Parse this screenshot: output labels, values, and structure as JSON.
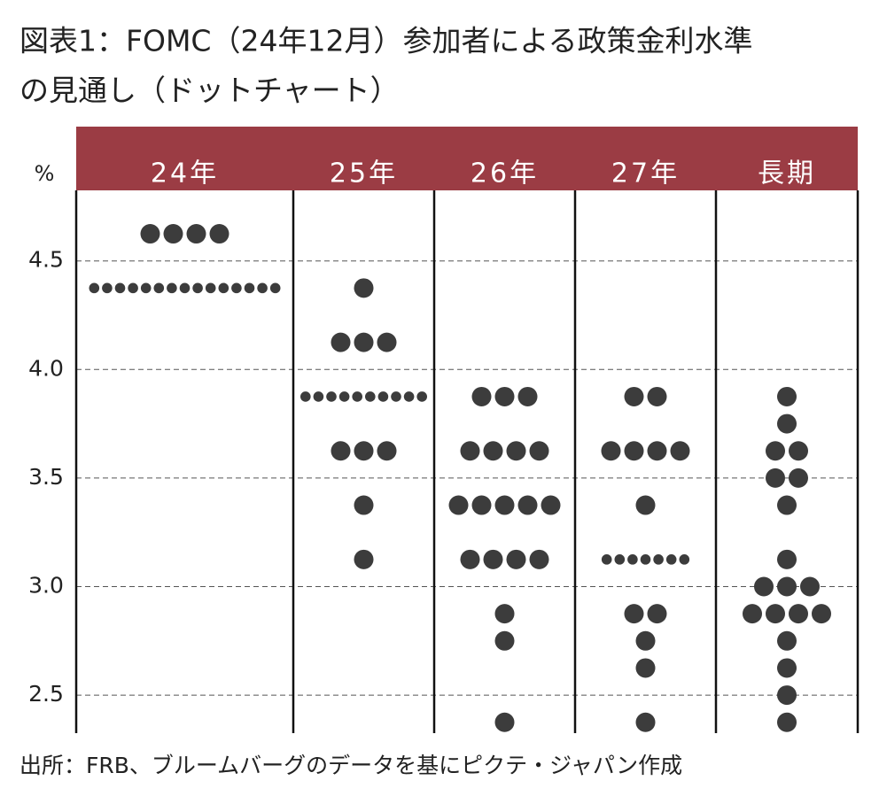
{
  "chart_data": {
    "type": "dot",
    "title_lines": [
      "図表1：FOMC（24年12月）参加者による政策金利水準",
      "の見通し（ドットチャート）"
    ],
    "y_unit": "%",
    "source": "出所：FRB、ブルームバーグのデータを基にピクテ・ジャパン作成",
    "categories": [
      "24年",
      "25年",
      "26年",
      "27年",
      "長期"
    ],
    "color": "#3c3c3c",
    "header_color": "#9b3c44",
    "ylim": [
      2.325,
      4.825
    ],
    "yticks": [
      2.5,
      {
        "value": 3,
        "label": "3.0"
      },
      3.5,
      {
        "value": 4,
        "label": "4.0"
      },
      4.5
    ],
    "grid": true,
    "dots": [
      [
        {
          "y": 4.625,
          "count": 4
        },
        {
          "y": 4.375,
          "count": 15
        }
      ],
      [
        {
          "y": 4.375,
          "count": 1
        },
        {
          "y": 4.125,
          "count": 3
        },
        {
          "y": 3.875,
          "count": 10
        },
        {
          "y": 3.625,
          "count": 3
        },
        {
          "y": 3.375,
          "count": 1
        },
        {
          "y": 3.125,
          "count": 1
        }
      ],
      [
        {
          "y": 3.875,
          "count": 3
        },
        {
          "y": 3.625,
          "count": 4
        },
        {
          "y": 3.375,
          "count": 5
        },
        {
          "y": 3.125,
          "count": 4
        },
        {
          "y": 2.875,
          "count": 1
        },
        {
          "y": 2.75,
          "count": 1
        },
        {
          "y": 2.375,
          "count": 1
        }
      ],
      [
        {
          "y": 3.875,
          "count": 2
        },
        {
          "y": 3.625,
          "count": 4
        },
        {
          "y": 3.375,
          "count": 1
        },
        {
          "y": 3.125,
          "count": 7
        },
        {
          "y": 2.875,
          "count": 2
        },
        {
          "y": 2.75,
          "count": 1
        },
        {
          "y": 2.625,
          "count": 1
        },
        {
          "y": 2.375,
          "count": 1
        }
      ],
      [
        {
          "y": 3.875,
          "count": 1
        },
        {
          "y": 3.75,
          "count": 1
        },
        {
          "y": 3.625,
          "count": 2
        },
        {
          "y": 3.5,
          "count": 2
        },
        {
          "y": 3.375,
          "count": 1
        },
        {
          "y": 3.125,
          "count": 1
        },
        {
          "y": 3,
          "count": 3
        },
        {
          "y": 2.875,
          "count": 4
        },
        {
          "y": 2.75,
          "count": 1
        },
        {
          "y": 2.625,
          "count": 1
        },
        {
          "y": 2.5,
          "count": 1
        },
        {
          "y": 2.375,
          "count": 1
        }
      ]
    ]
  }
}
